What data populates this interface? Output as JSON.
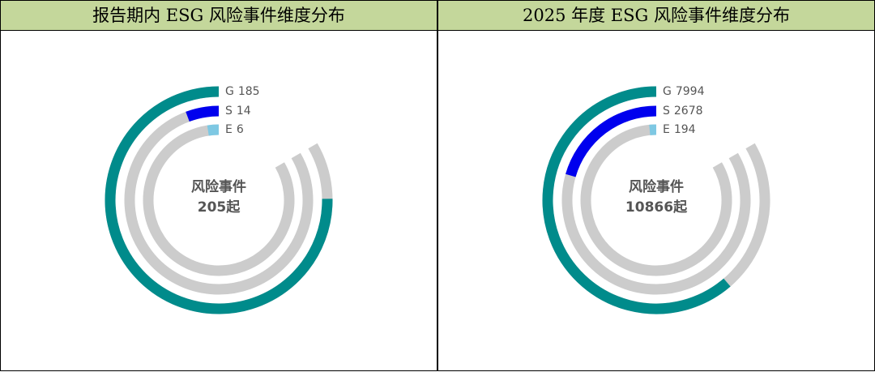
{
  "chart_data": [
    {
      "type": "radial_bar",
      "title": "报告期内 ESG 风险事件维度分布",
      "categories": [
        "G",
        "S",
        "E"
      ],
      "values": [
        185,
        14,
        6
      ],
      "colors": [
        "#008b8b",
        "#0000ee",
        "#7ec8e3"
      ],
      "track_color": "#cccccc",
      "center_text": "风险事件",
      "total": 205,
      "total_label": "205起"
    },
    {
      "type": "radial_bar",
      "title": "2025 年度 ESG 风险事件维度分布",
      "categories": [
        "G",
        "S",
        "E"
      ],
      "values": [
        7994,
        2678,
        194
      ],
      "colors": [
        "#008b8b",
        "#0000ee",
        "#7ec8e3"
      ],
      "track_color": "#cccccc",
      "center_text": "风险事件",
      "total": 10866,
      "total_label": "10866起"
    }
  ]
}
